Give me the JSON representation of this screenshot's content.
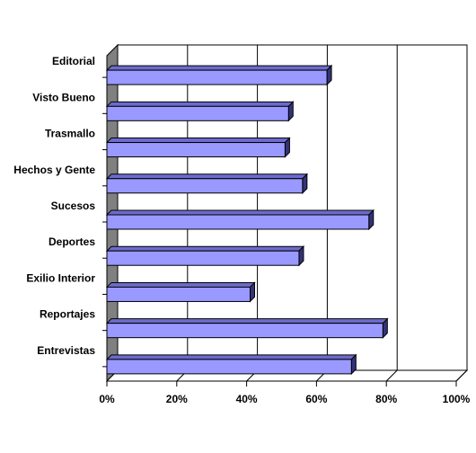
{
  "chart_data": {
    "type": "bar",
    "orientation": "horizontal",
    "style": "3d",
    "categories": [
      "Editorial",
      "Visto Bueno",
      "Trasmallo",
      "Hechos y Gente",
      "Sucesos",
      "Deportes",
      "Exilio Interior",
      "Reportajes",
      "Entrevistas"
    ],
    "values": [
      63,
      52,
      51,
      56,
      75,
      55,
      41,
      79,
      70
    ],
    "xlim": [
      0,
      100
    ],
    "x_ticks": [
      "0%",
      "20%",
      "40%",
      "60%",
      "80%",
      "100%"
    ],
    "grid": true,
    "legend": "none",
    "bar_color": "#9999ff",
    "bar_top_color": "#6b6bcc",
    "bar_side_color": "#33337a",
    "wall_color": "#808080",
    "title": "",
    "xlabel": "",
    "ylabel": ""
  }
}
